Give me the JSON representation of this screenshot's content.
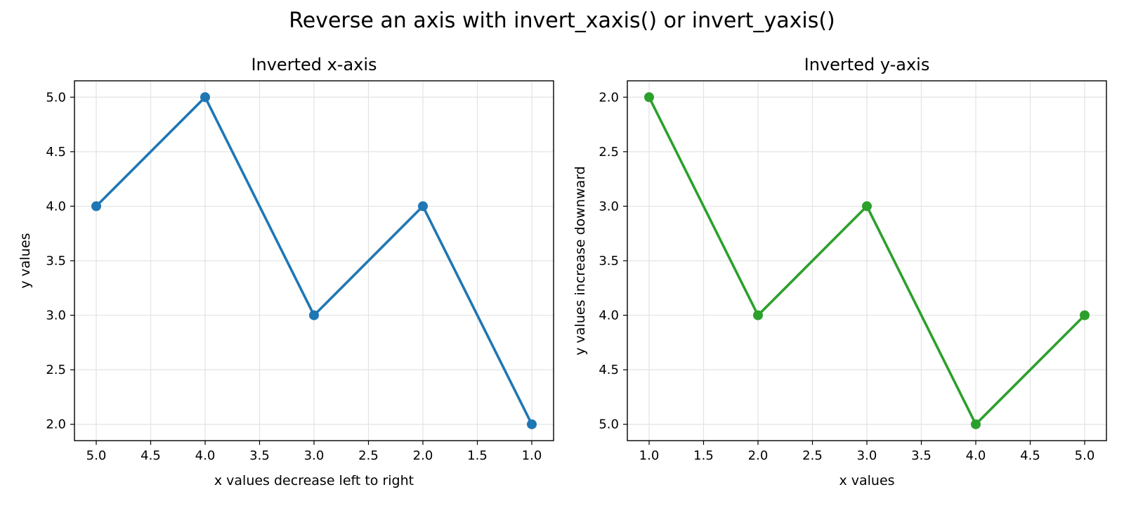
{
  "figure": {
    "title": "Reverse an axis with invert_xaxis() or invert_yaxis()"
  },
  "chart_data": [
    {
      "type": "line",
      "title": "Inverted x-axis",
      "xlabel": "x values decrease left to right",
      "ylabel": "y values",
      "x": [
        1,
        2,
        3,
        4,
        5
      ],
      "series": [
        {
          "values": [
            2,
            4,
            3,
            5,
            4
          ],
          "color": "#1f77b4"
        }
      ],
      "xlim": [
        5.2,
        0.8
      ],
      "ylim": [
        1.85,
        5.15
      ],
      "xticks": [
        "5.0",
        "4.5",
        "4.0",
        "3.5",
        "3.0",
        "2.5",
        "2.0",
        "1.5",
        "1.0"
      ],
      "yticks": [
        "2.0",
        "2.5",
        "3.0",
        "3.5",
        "4.0",
        "4.5",
        "5.0"
      ],
      "x_inverted": true,
      "y_inverted": false,
      "grid": true,
      "marker": "circle"
    },
    {
      "type": "line",
      "title": "Inverted y-axis",
      "xlabel": "x values",
      "ylabel": "y values increase downward",
      "x": [
        1,
        2,
        3,
        4,
        5
      ],
      "series": [
        {
          "values": [
            2,
            4,
            3,
            5,
            4
          ],
          "color": "#2ca02c"
        }
      ],
      "xlim": [
        0.8,
        5.2
      ],
      "ylim": [
        5.15,
        1.85
      ],
      "xticks": [
        "1.0",
        "1.5",
        "2.0",
        "2.5",
        "3.0",
        "3.5",
        "4.0",
        "4.5",
        "5.0"
      ],
      "yticks": [
        "2.0",
        "2.5",
        "3.0",
        "3.5",
        "4.0",
        "4.5",
        "5.0"
      ],
      "x_inverted": false,
      "y_inverted": true,
      "grid": true,
      "marker": "circle"
    }
  ]
}
